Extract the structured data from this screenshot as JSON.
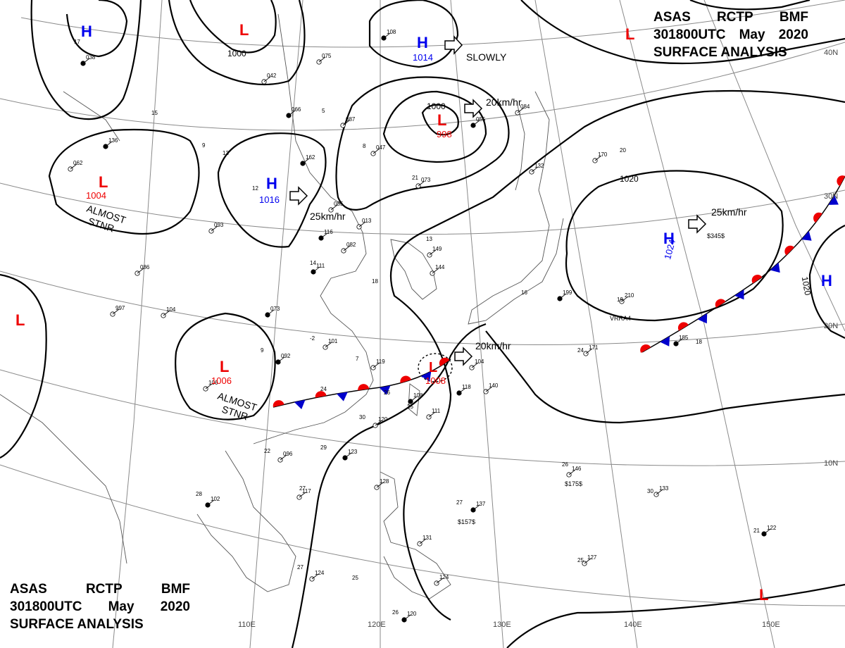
{
  "header": {
    "line1": [
      "ASAS",
      "RCTP",
      "BMF"
    ],
    "line2": [
      "301800UTC",
      "May",
      "2020"
    ],
    "line3": "SURFACE ANALYSIS"
  },
  "lat_labels": [
    "40N",
    "30N",
    "20N",
    "10N"
  ],
  "lon_labels": [
    "110E",
    "120E",
    "130E",
    "140E",
    "150E"
  ],
  "colors": {
    "high": "#0000ee",
    "low": "#ee0000",
    "front_warm": "#ee0000",
    "front_cold": "#0000cc",
    "isobar": "#000000",
    "grid": "#8a8a8a"
  },
  "pressure_centers": [
    {
      "type": "H",
      "value": "",
      "name": "high-nw-corner"
    },
    {
      "type": "L",
      "value": "",
      "name": "low-north-top"
    },
    {
      "type": "H",
      "value": "1014",
      "name": "high-north"
    },
    {
      "type": "L",
      "value": "998",
      "name": "low-yellow-sea"
    },
    {
      "type": "L",
      "value": "1004",
      "name": "low-west"
    },
    {
      "type": "H",
      "value": "1016",
      "name": "high-central"
    },
    {
      "type": "H",
      "value": "1024",
      "name": "high-pacific"
    },
    {
      "type": "L",
      "value": "1006",
      "name": "low-southwest"
    },
    {
      "type": "L",
      "value": "1008",
      "name": "low-taiwan"
    },
    {
      "type": "L",
      "value": "",
      "name": "low-far-west"
    },
    {
      "type": "L",
      "value": "",
      "name": "low-top-right"
    },
    {
      "type": "L",
      "value": "",
      "name": "low-bottom-right"
    },
    {
      "type": "H",
      "value": "",
      "name": "high-right-edge"
    }
  ],
  "movements": [
    "SLOWLY",
    "20km/hr",
    "25km/hr",
    "25km/hr",
    "20km/hr"
  ],
  "stationary_notes": [
    "ALMOST",
    "STNR",
    "ALMOST",
    "STNR"
  ],
  "isobar_labels": [
    "1000",
    "1000",
    "1020",
    "1020"
  ],
  "station_plots": [
    "108",
    "075",
    "042",
    "066",
    "087",
    "047",
    "162",
    "073",
    "085",
    "116",
    "082",
    "086",
    "111",
    "144",
    "149",
    "055",
    "132",
    "170",
    "199",
    "210",
    "171",
    "185",
    "101",
    "119",
    "092",
    "096",
    "106",
    "108",
    "111",
    "140",
    "118",
    "104",
    "120",
    "123",
    "128",
    "131",
    "137",
    "146",
    "133",
    "122",
    "127",
    "124",
    "102",
    "117",
    "124",
    "120",
    "997",
    "104",
    "073",
    "093",
    "013",
    "136",
    "062",
    "084",
    "038"
  ],
  "station_temps": [
    "17",
    "15",
    "9",
    "13",
    "5",
    "8",
    "21",
    "14",
    "13",
    "18",
    "12",
    "20",
    "16",
    "19",
    "24",
    "18",
    "-2",
    "7",
    "9",
    "22",
    "24",
    "26",
    "25",
    "29",
    "30",
    "27",
    "28",
    "27",
    "25",
    "26",
    "26",
    "30",
    "25",
    "21",
    "27"
  ],
  "misc_labels": [
    "$175$",
    "$157$",
    "$345$",
    "VRRA4"
  ]
}
